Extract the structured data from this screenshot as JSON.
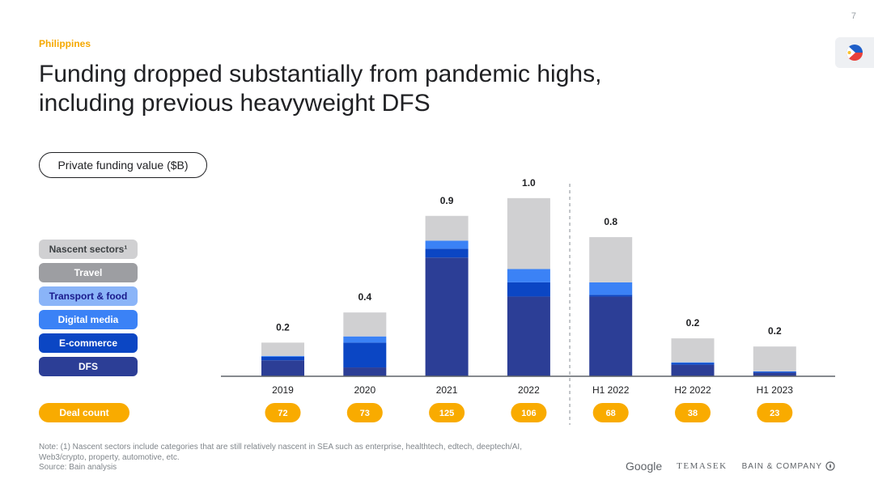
{
  "header": {
    "page_number": "7",
    "country_label": "Philippines",
    "title_lines": [
      "Funding dropped substantially from pandemic highs,",
      "including previous heavyweight DFS"
    ]
  },
  "flag_icon": "philippines-flag-icon",
  "metric_label": "Private funding value ($B)",
  "legend": [
    {
      "label": "Nascent sectors¹",
      "color": "#d0d0d2",
      "text_color": "#3c4043"
    },
    {
      "label": "Travel",
      "color": "#9d9ea2",
      "text_color": "#ffffff"
    },
    {
      "label": "Transport & food",
      "color": "#8ab4f8",
      "text_color": "#1a1a8c"
    },
    {
      "label": "Digital media",
      "color": "#3b82f6",
      "text_color": "#ffffff"
    },
    {
      "label": "E-commerce",
      "color": "#0b46c4",
      "text_color": "#ffffff"
    },
    {
      "label": "DFS",
      "color": "#2c3e96",
      "text_color": "#ffffff"
    }
  ],
  "chart_data": {
    "type": "bar",
    "stacked": true,
    "categories": [
      "2019",
      "2020",
      "2021",
      "2022",
      "H1 2022",
      "H2 2022",
      "H1 2023"
    ],
    "totals_labels": [
      "0.2",
      "0.4",
      "0.9",
      "1.0",
      "0.8",
      "0.2",
      "0.2"
    ],
    "ylim": [
      0,
      1.05
    ],
    "series": [
      {
        "name": "DFS",
        "color": "#2c3e96",
        "values": [
          0.09,
          0.05,
          0.67,
          0.45,
          0.45,
          0.065,
          0.02
        ]
      },
      {
        "name": "E-commerce",
        "color": "#0b46c4",
        "values": [
          0.02,
          0.14,
          0.05,
          0.08,
          0.01,
          0.01,
          0.005
        ]
      },
      {
        "name": "Digital media",
        "color": "#3b82f6",
        "values": [
          0.005,
          0.035,
          0.045,
          0.075,
          0.07,
          0.004,
          0.003
        ]
      },
      {
        "name": "Transport & food",
        "color": "#8ab4f8",
        "values": [
          0.0,
          0.0,
          0.0,
          0.0,
          0.0,
          0.0,
          0.0
        ]
      },
      {
        "name": "Travel",
        "color": "#9d9ea2",
        "values": [
          0.0,
          0.0,
          0.0,
          0.0,
          0.0,
          0.0,
          0.0
        ]
      },
      {
        "name": "Nascent sectors",
        "color": "#d0d0d2",
        "values": [
          0.075,
          0.135,
          0.14,
          0.4,
          0.255,
          0.135,
          0.14
        ]
      }
    ],
    "divider_after_index": 3,
    "deal_count_label": "Deal count",
    "deal_counts": [
      "72",
      "73",
      "125",
      "106",
      "68",
      "38",
      "23"
    ],
    "accent_color": "#f9ab00"
  },
  "footnote": {
    "lines": [
      "Note: (1) Nascent sectors include categories that are still relatively nascent in SEA such as enterprise, healthtech, edtech, deeptech/AI,",
      "Web3/crypto, property, automotive, etc.",
      "Source: Bain analysis"
    ]
  },
  "logos": {
    "google": "Google",
    "temasek": "TEMASEK",
    "bain": "BAIN & COMPANY"
  }
}
